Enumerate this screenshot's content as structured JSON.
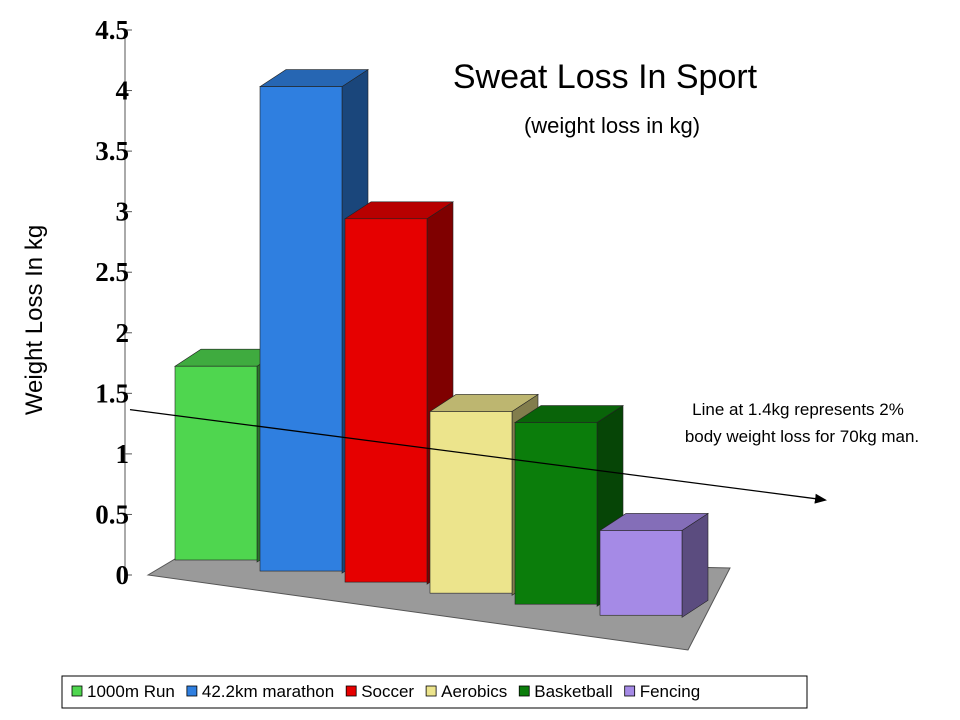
{
  "chart_data": {
    "type": "bar3d",
    "title": "Sweat Loss In Sport",
    "subtitle": "(weight loss in kg)",
    "y_label": "Weight Loss In kg",
    "series": [
      {
        "name": "1000m Run",
        "color": "#4fd64f",
        "values": [
          1.6
        ]
      },
      {
        "name": "42.2km marathon",
        "color": "#2f7fe0",
        "values": [
          4.0
        ]
      },
      {
        "name": "Soccer",
        "color": "#e60000",
        "values": [
          3.0
        ]
      },
      {
        "name": "Aerobics",
        "color": "#ece48c",
        "values": [
          1.5
        ]
      },
      {
        "name": "Basketball",
        "color": "#0b7d0b",
        "values": [
          1.5
        ]
      },
      {
        "name": "Fencing",
        "color": "#a58ae6",
        "values": [
          0.7
        ]
      }
    ],
    "ylim": [
      0,
      4.5
    ],
    "yticks": [
      0,
      0.5,
      1,
      1.5,
      2,
      2.5,
      3,
      3.5,
      4,
      4.5
    ],
    "reference_line": 1.4,
    "annotation": [
      "Line at 1.4kg represents 2%",
      "body weight loss for 70kg man."
    ],
    "grid": false,
    "legend": "bottom"
  }
}
